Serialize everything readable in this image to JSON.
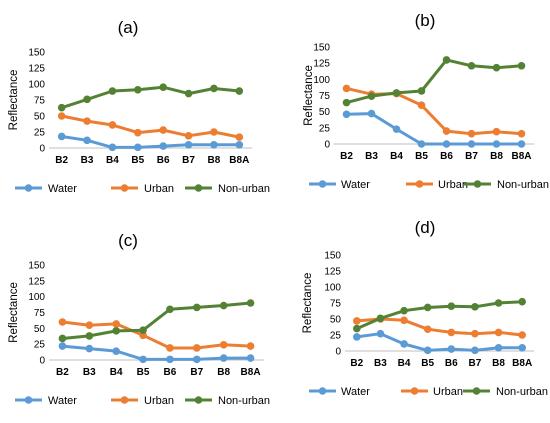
{
  "colors": {
    "Water": "#5b9bd5",
    "Urban": "#ed7d31",
    "Non-urban": "#548235"
  },
  "chart_data": [
    {
      "type": "line",
      "title": "(a)",
      "ylabel": "Reflectance",
      "xlabel": "",
      "categories": [
        "B2",
        "B3",
        "B4",
        "B5",
        "B6",
        "B7",
        "B8",
        "B8A"
      ],
      "ylim": [
        0,
        150
      ],
      "yticks": [
        0,
        25,
        50,
        75,
        100,
        125,
        150
      ],
      "legend": "bottom",
      "series": [
        {
          "name": "Water",
          "values": [
            18,
            12,
            1,
            1,
            3,
            5,
            5,
            5
          ]
        },
        {
          "name": "Urban",
          "values": [
            50,
            42,
            36,
            24,
            28,
            19,
            25,
            17
          ]
        },
        {
          "name": "Non-urban",
          "values": [
            63,
            76,
            89,
            91,
            95,
            85,
            93,
            89
          ]
        }
      ]
    },
    {
      "type": "line",
      "title": "(b)",
      "ylabel": "Reflectance",
      "xlabel": "",
      "categories": [
        "B2",
        "B3",
        "B4",
        "B5",
        "B6",
        "B7",
        "B8",
        "B8A"
      ],
      "ylim": [
        0,
        150
      ],
      "yticks": [
        0,
        25,
        50,
        75,
        100,
        125,
        150
      ],
      "legend": "bottom",
      "series": [
        {
          "name": "Water",
          "values": [
            46,
            47,
            23,
            0,
            0,
            0,
            0,
            0
          ]
        },
        {
          "name": "Urban",
          "values": [
            86,
            77,
            78,
            60,
            20,
            16,
            19,
            16
          ]
        },
        {
          "name": "Non-urban",
          "values": [
            64,
            74,
            79,
            82,
            130,
            121,
            118,
            121
          ]
        }
      ]
    },
    {
      "type": "line",
      "title": "(c)",
      "ylabel": "Reflectance",
      "xlabel": "",
      "categories": [
        "B2",
        "B3",
        "B4",
        "B5",
        "B6",
        "B7",
        "B8",
        "B8A"
      ],
      "ylim": [
        0,
        150
      ],
      "yticks": [
        0,
        25,
        50,
        75,
        100,
        125,
        150
      ],
      "legend": "bottom",
      "series": [
        {
          "name": "Water",
          "values": [
            22,
            18,
            14,
            1,
            1,
            1,
            3,
            3
          ]
        },
        {
          "name": "Urban",
          "values": [
            60,
            55,
            57,
            39,
            19,
            19,
            24,
            22
          ]
        },
        {
          "name": "Non-urban",
          "values": [
            34,
            38,
            46,
            47,
            80,
            83,
            86,
            90
          ]
        }
      ]
    },
    {
      "type": "line",
      "title": "(d)",
      "ylabel": "Reflectance",
      "xlabel": "",
      "categories": [
        "B2",
        "B3",
        "B4",
        "B5",
        "B6",
        "B7",
        "B8",
        "B8A"
      ],
      "ylim": [
        0,
        150
      ],
      "yticks": [
        0,
        25,
        50,
        75,
        100,
        125,
        150
      ],
      "legend": "bottom",
      "series": [
        {
          "name": "Water",
          "values": [
            22,
            27,
            11,
            1,
            3,
            1,
            5,
            5
          ]
        },
        {
          "name": "Urban",
          "values": [
            47,
            50,
            48,
            34,
            29,
            27,
            29,
            25
          ]
        },
        {
          "name": "Non-urban",
          "values": [
            35,
            51,
            63,
            68,
            70,
            69,
            75,
            77
          ]
        }
      ]
    }
  ]
}
